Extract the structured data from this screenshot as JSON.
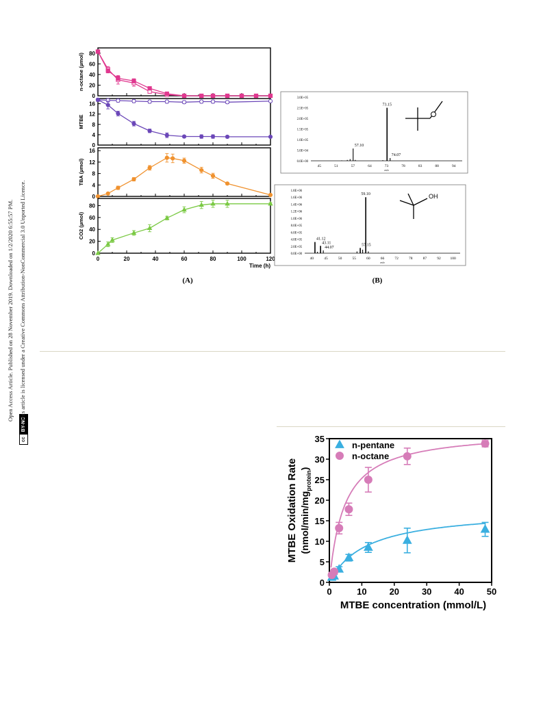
{
  "sidebar": {
    "line1": "Open Access Article. Published on 28 November 2019. Downloaded on 1/2/2020 6:55:57 PM.",
    "line2": "This article is licensed under a Creative Commons Attribution-NonCommercial 3.0 Unported Licence.",
    "badge_cc": "cc",
    "badge_text": "BY-NC"
  },
  "figure_top": {
    "panel_a_label": "(A)",
    "panel_b_label": "(B)"
  },
  "chart_data": [
    {
      "type": "line",
      "panel": "A",
      "x_label": "Time (h)",
      "x_ticks": [
        "0",
        "20",
        "40",
        "60",
        "80",
        "100",
        "120"
      ],
      "xlim": [
        0,
        120
      ],
      "subplots": [
        {
          "ylabel": "n-octane (µmol)",
          "ylim": [
            0,
            90
          ],
          "y_ticks": [
            "0",
            "20",
            "40",
            "60",
            "80"
          ],
          "color": "#e0388f",
          "series": [
            {
              "x": [
                0,
                7,
                14,
                25,
                36,
                48,
                60,
                72,
                80,
                90,
                100,
                110,
                120
              ],
              "y": [
                83,
                50,
                30,
                24,
                8,
                2,
                0,
                0,
                0,
                0,
                0,
                0,
                0
              ],
              "err": [
                3,
                5,
                8,
                6,
                3,
                1,
                0,
                0,
                0,
                0,
                0,
                0,
                0
              ],
              "marker": "open-square"
            },
            {
              "x": [
                0,
                7,
                14,
                25,
                36,
                48,
                60,
                72,
                80,
                90,
                100,
                110,
                120
              ],
              "y": [
                83,
                47,
                33,
                28,
                14,
                4,
                0,
                0,
                0,
                0,
                0,
                0,
                0
              ],
              "err": [
                3,
                4,
                4,
                4,
                3,
                2,
                0,
                0,
                0,
                0,
                0,
                0,
                0
              ],
              "marker": "filled-square"
            }
          ]
        },
        {
          "ylabel": "MTBE",
          "ylim": [
            0,
            18
          ],
          "y_ticks": [
            "0",
            "4",
            "8",
            "12",
            "16"
          ],
          "color": "#6b47b8",
          "series": [
            {
              "x": [
                0,
                7,
                14,
                25,
                36,
                48,
                60,
                72,
                80,
                90,
                120
              ],
              "y": [
                17.5,
                17.3,
                17.2,
                17,
                16.8,
                16.8,
                16.6,
                16.8,
                16.8,
                16.6,
                17
              ],
              "err": [
                0.6,
                0.6,
                0.6,
                0.6,
                0.6,
                0.6,
                0.6,
                0.6,
                0.6,
                0.6,
                0.4
              ],
              "marker": "open-circle"
            },
            {
              "x": [
                0,
                7,
                14,
                25,
                36,
                48,
                60,
                72,
                80,
                90,
                120
              ],
              "y": [
                17.5,
                15.5,
                12.2,
                8.3,
                5.5,
                3.8,
                3.3,
                3.3,
                3.3,
                3.2,
                3.2
              ],
              "err": [
                0.6,
                1.5,
                0.9,
                0.9,
                0.7,
                0.9,
                0.5,
                0.7,
                0.7,
                0.5,
                0.3
              ],
              "marker": "filled-circle"
            }
          ]
        },
        {
          "ylabel": "TBA (µmol)",
          "ylim": [
            0,
            17
          ],
          "y_ticks": [
            "0",
            "4",
            "8",
            "12",
            "16"
          ],
          "color": "#f0922f",
          "series": [
            {
              "x": [
                0,
                7,
                14,
                25,
                36,
                48,
                52,
                60,
                72,
                80,
                90,
                120
              ],
              "y": [
                0,
                1,
                3,
                6,
                10,
                13.5,
                13.3,
                12.5,
                9.2,
                7.2,
                4.5,
                0.5
              ],
              "err": [
                0,
                0.3,
                0.6,
                0.6,
                0.8,
                1.5,
                1.5,
                0.9,
                1,
                0.9,
                0.4,
                0.2
              ],
              "marker": "filled-circle"
            }
          ]
        },
        {
          "ylabel": "CO2 (µmol)",
          "ylim": [
            0,
            92
          ],
          "y_ticks": [
            "0",
            "20",
            "40",
            "60",
            "80"
          ],
          "color": "#7ac943",
          "series": [
            {
              "x": [
                0,
                7,
                10,
                25,
                36,
                48,
                60,
                72,
                80,
                90,
                120
              ],
              "y": [
                0,
                15,
                22,
                34,
                42,
                59,
                73,
                81,
                83,
                83,
                83
              ],
              "err": [
                0,
                4,
                4,
                4,
                6,
                3,
                5,
                6,
                6,
                6,
                2
              ],
              "marker": "filled-triangle"
            }
          ]
        }
      ]
    },
    {
      "type": "bar",
      "panel": "B-top",
      "xlabel": "m/z",
      "x_ticks": [
        "45",
        "51",
        "57",
        "64",
        "73",
        "78",
        "83",
        "88",
        "94"
      ],
      "xlim": [
        45,
        94
      ],
      "y_ticks": [
        "0.0E+00",
        "5.0E+04",
        "1.0E+05",
        "1.5E+05",
        "2.0E+05",
        "2.5E+05",
        "3.0E+05"
      ],
      "ylim": [
        0,
        300000
      ],
      "peaks": [
        {
          "mz": 57.1,
          "intensity": 58000,
          "label": "57.10"
        },
        {
          "mz": 73.15,
          "intensity": 250000,
          "label": "73.15"
        },
        {
          "mz": 74.07,
          "intensity": 13000,
          "label": "74.07"
        },
        {
          "mz": 53,
          "intensity": 2000,
          "label": ""
        },
        {
          "mz": 55,
          "intensity": 4000,
          "label": ""
        },
        {
          "mz": 56,
          "intensity": 8000,
          "label": ""
        },
        {
          "mz": 58,
          "intensity": 4000,
          "label": ""
        },
        {
          "mz": 71,
          "intensity": 3000,
          "label": ""
        }
      ]
    },
    {
      "type": "bar",
      "panel": "B-bottom",
      "xlabel": "m/z",
      "x_ticks": [
        "40",
        "45",
        "50",
        "55",
        "60",
        "66",
        "72",
        "78",
        "87",
        "92",
        "100"
      ],
      "xlim": [
        40,
        100
      ],
      "y_ticks": [
        "0.0E+00",
        "2.0E+05",
        "4.0E+05",
        "6.0E+05",
        "8.0E+05",
        "1.0E+06",
        "1.2E+06",
        "1.4E+06",
        "1.6E+06",
        "1.8E+06"
      ],
      "ylim": [
        0,
        1800000
      ],
      "molecule_label": "OH",
      "peaks": [
        {
          "mz": 41.12,
          "intensity": 320000,
          "label": "41.12"
        },
        {
          "mz": 43.11,
          "intensity": 210000,
          "label": "43.11"
        },
        {
          "mz": 44.07,
          "intensity": 80000,
          "label": "44.07"
        },
        {
          "mz": 57.15,
          "intensity": 150000,
          "label": "57.15"
        },
        {
          "mz": 59.1,
          "intensity": 1600000,
          "label": "59.10"
        },
        {
          "mz": 42,
          "intensity": 40000,
          "label": ""
        },
        {
          "mz": 56,
          "intensity": 50000,
          "label": ""
        },
        {
          "mz": 58,
          "intensity": 100000,
          "label": ""
        },
        {
          "mz": 60,
          "intensity": 50000,
          "label": ""
        }
      ]
    },
    {
      "type": "scatter",
      "panel": "kinetics",
      "xlabel": "MTBE concentration (mmol/L)",
      "ylabel": "MTBE Oxidation Rate",
      "ylabel2_prefix": "(nmol/min/mg",
      "ylabel2_sub": "protein",
      "ylabel2_suffix": ")",
      "x_ticks": [
        "0",
        "10",
        "20",
        "30",
        "40",
        "50"
      ],
      "y_ticks": [
        "0",
        "5",
        "10",
        "15",
        "20",
        "25",
        "30",
        "35"
      ],
      "xlim": [
        0,
        50
      ],
      "ylim": [
        0,
        35
      ],
      "legend_position": "top-left",
      "series": [
        {
          "name": "n-pentane",
          "color": "#3aafe0",
          "marker": "triangle",
          "x": [
            0.75,
            1.5,
            3,
            6,
            12,
            24,
            48
          ],
          "y": [
            1.2,
            1.5,
            3.2,
            6,
            8.5,
            10.2,
            12.9
          ],
          "err": [
            0.4,
            0.4,
            0.6,
            0.8,
            1.2,
            3.0,
            1.7
          ],
          "fit_vmax": 17.8,
          "fit_km": 11.5
        },
        {
          "name": "n-octane",
          "color": "#d67cb8",
          "marker": "circle",
          "x": [
            0.75,
            1.5,
            3,
            6,
            12,
            24,
            48
          ],
          "y": [
            1.8,
            2.6,
            13.2,
            17.8,
            25,
            30.7,
            33.8
          ],
          "err": [
            0.4,
            0.6,
            1.4,
            1.5,
            3.0,
            2.0,
            0.8
          ],
          "fit_vmax": 37,
          "fit_km": 4.6
        }
      ]
    }
  ]
}
